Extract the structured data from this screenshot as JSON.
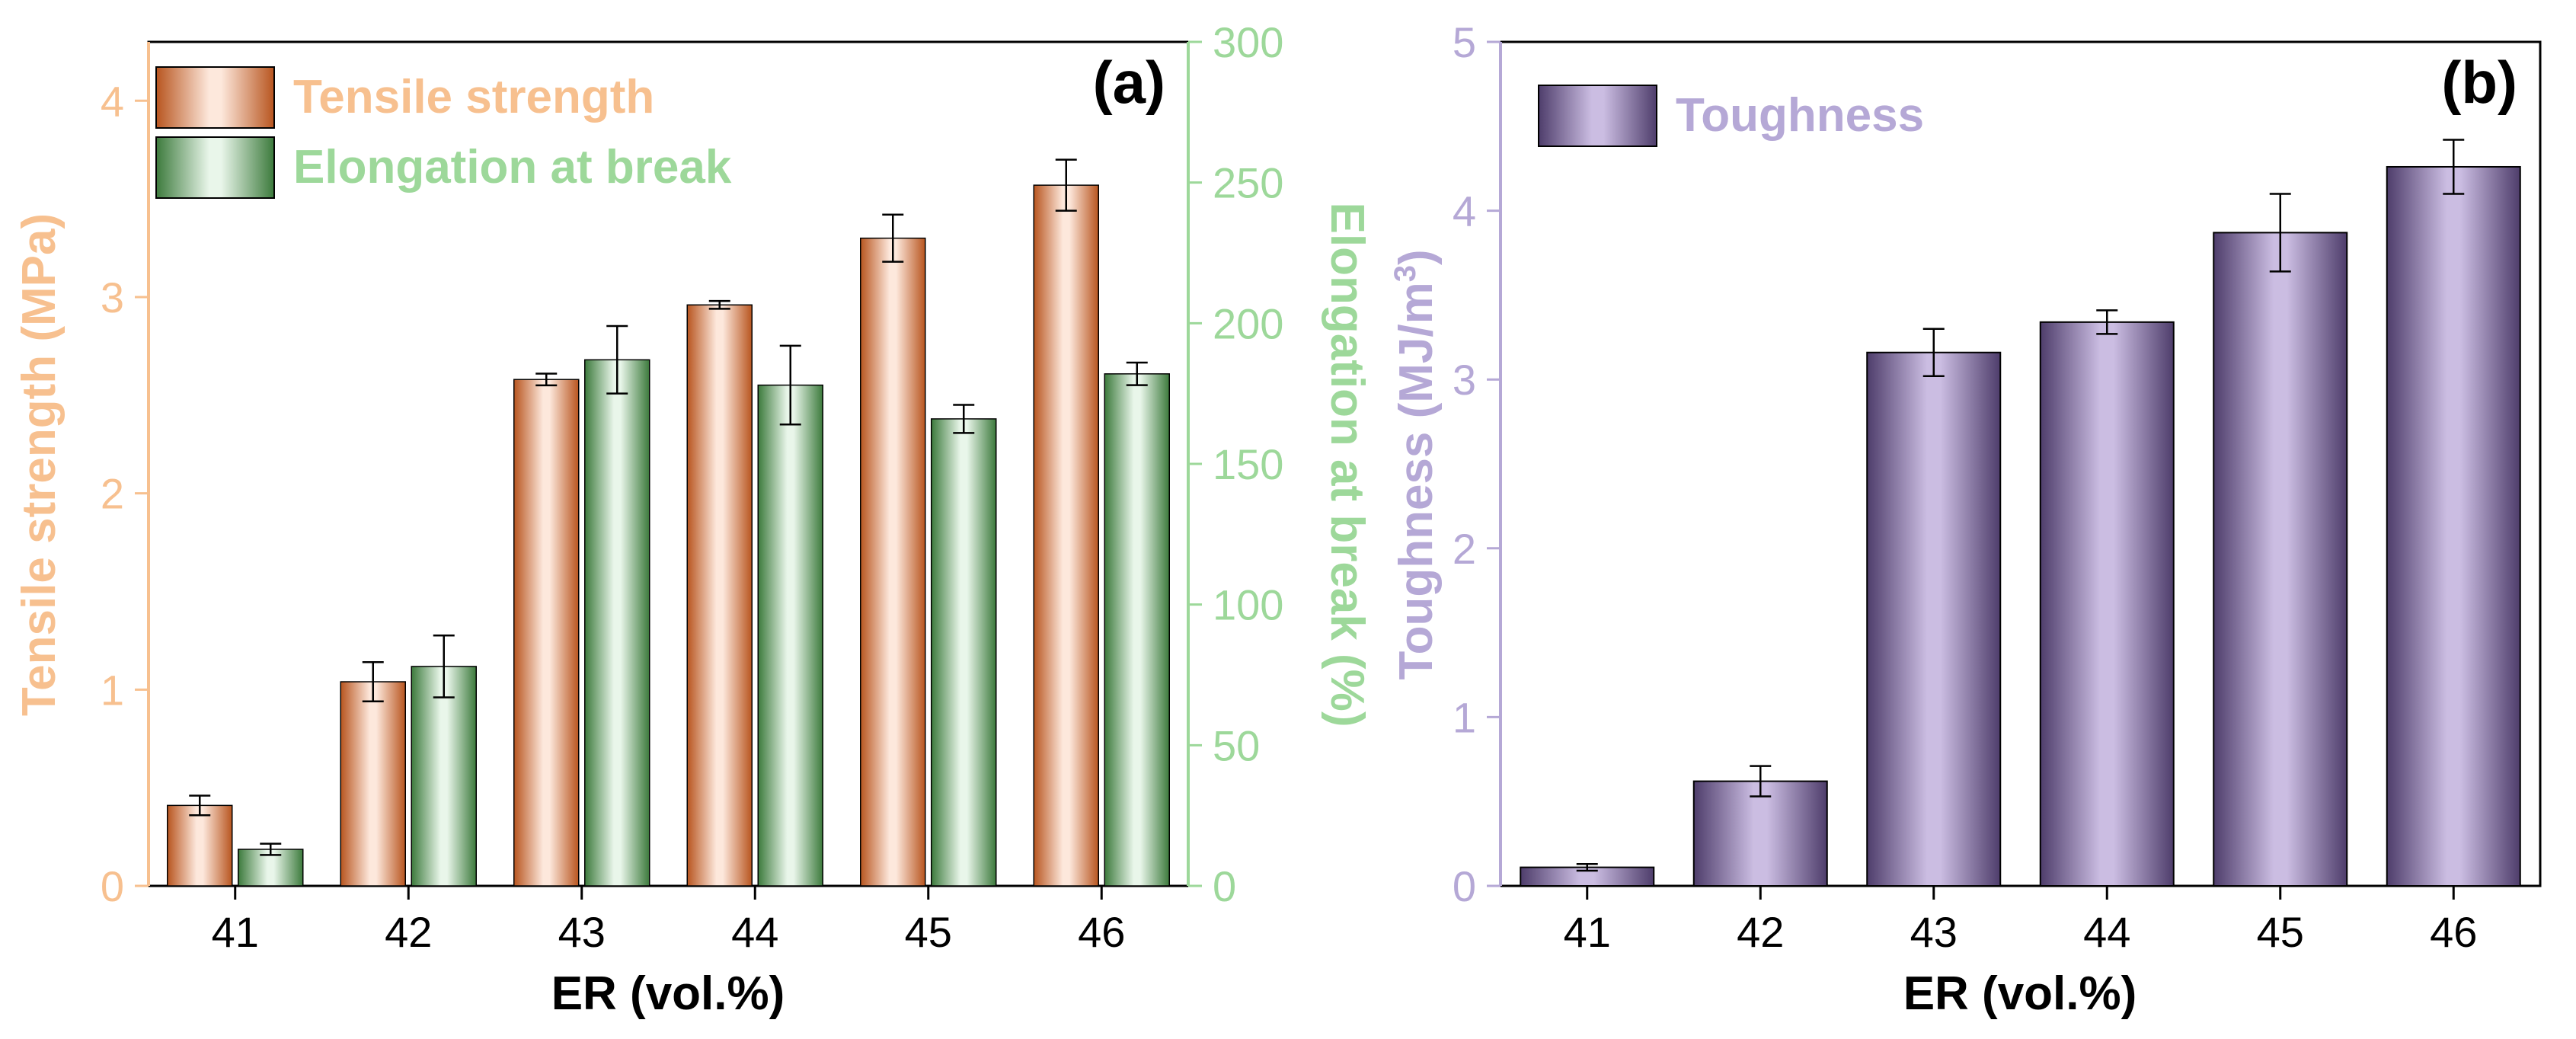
{
  "colors": {
    "tensile_dark": "#b8551f",
    "tensile_light": "#fde8dc",
    "tensile_text": "#f7c08f",
    "elong_dark": "#3c7a3c",
    "elong_light": "#e9f6ea",
    "elong_text": "#9dd89a",
    "tough_dark": "#4e3d6b",
    "tough_light": "#cbbde2",
    "tough_text": "#b5a8d6",
    "axis": "#000000"
  },
  "chart_data": [
    {
      "type": "bar",
      "panel_label": "(a)",
      "categories": [
        "41",
        "42",
        "43",
        "44",
        "45",
        "46"
      ],
      "xlabel": "ER (vol.%)",
      "ylabel": "Tensile strength (MPa)",
      "y2label": "Elongation at break (%)",
      "ylim": [
        0,
        4.3
      ],
      "y2lim": [
        0,
        300
      ],
      "yticks": [
        0,
        1,
        2,
        3,
        4
      ],
      "y2ticks": [
        0,
        50,
        100,
        150,
        200,
        250,
        300
      ],
      "legend_position": "top-left",
      "series": [
        {
          "name": "Tensile strength",
          "axis": "left",
          "values": [
            0.41,
            1.04,
            2.58,
            2.96,
            3.3,
            3.57
          ],
          "errors": [
            0.05,
            0.1,
            0.03,
            0.02,
            0.12,
            0.13
          ]
        },
        {
          "name": "Elongation at break",
          "axis": "right",
          "values": [
            13,
            78,
            187,
            178,
            166,
            182
          ],
          "errors": [
            2,
            11,
            12,
            14,
            5,
            4
          ]
        }
      ]
    },
    {
      "type": "bar",
      "panel_label": "(b)",
      "categories": [
        "41",
        "42",
        "43",
        "44",
        "45",
        "46"
      ],
      "xlabel": "ER (vol.%)",
      "ylabel_main": "Toughness (MJ/m",
      "ylabel_sup": "3",
      "ylabel_end": ")",
      "ylim": [
        0,
        5
      ],
      "yticks": [
        0,
        1,
        2,
        3,
        4,
        5
      ],
      "legend_position": "top-left",
      "series": [
        {
          "name": "Toughness",
          "values": [
            0.11,
            0.62,
            3.16,
            3.34,
            3.87,
            4.26
          ],
          "errors": [
            0.02,
            0.09,
            0.14,
            0.07,
            0.23,
            0.16
          ]
        }
      ]
    }
  ]
}
